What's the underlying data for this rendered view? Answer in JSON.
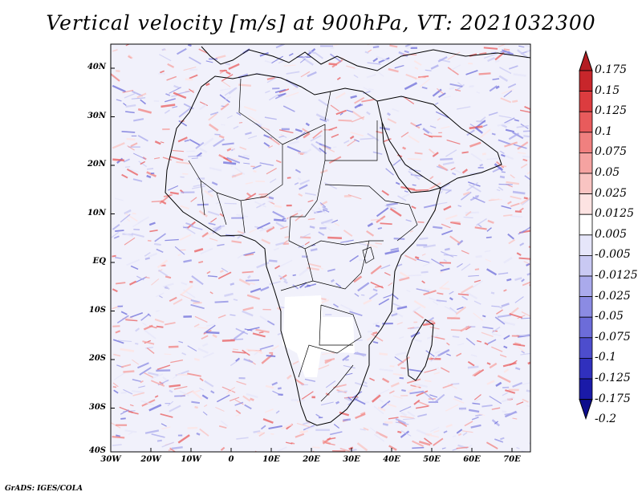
{
  "title": "Vertical velocity [m/s] at 900hPa, VT: 2021032300",
  "footer": "GrADS: IGES/COLA",
  "lat_labels": [
    "40N",
    "30N",
    "20N",
    "10N",
    "EQ",
    "10S",
    "20S",
    "30S",
    "40S"
  ],
  "lon_labels": [
    "30W",
    "20W",
    "10W",
    "0",
    "10E",
    "20E",
    "30E",
    "40E",
    "50E",
    "60E",
    "70E"
  ],
  "colorbar": {
    "levels": [
      "0.175",
      "0.15",
      "0.125",
      "0.1",
      "0.075",
      "0.05",
      "0.025",
      "0.0125",
      "0.005",
      "-0.005",
      "-0.0125",
      "-0.025",
      "-0.05",
      "-0.075",
      "-0.1",
      "-0.125",
      "-0.175",
      "-0.2"
    ],
    "colors": [
      "#b41e23",
      "#c8262b",
      "#dc3c3f",
      "#e85b5c",
      "#f0807f",
      "#f5a3a1",
      "#f9c4c2",
      "#fde3e2",
      "#ffffff",
      "#e6e6fa",
      "#c9c9f3",
      "#aaaaec",
      "#8b8be3",
      "#6c6cd9",
      "#4d4dcd",
      "#3030bd",
      "#1a1aa8",
      "#0d0d8c"
    ]
  },
  "colors": {
    "positive": "#e85b5c",
    "negative": "#6c6cd9",
    "border": "#000000"
  }
}
